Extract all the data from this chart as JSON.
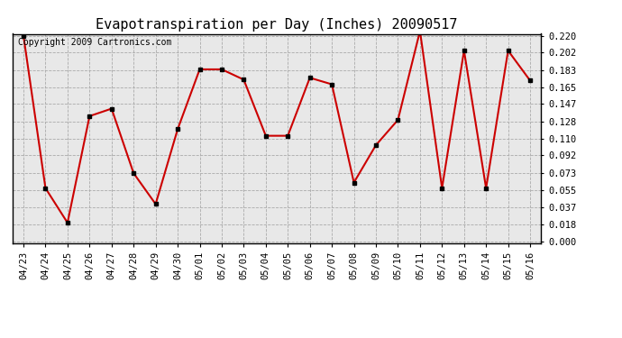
{
  "title": "Evapotranspiration per Day (Inches) 20090517",
  "copyright_text": "Copyright 2009 Cartronics.com",
  "dates": [
    "04/23",
    "04/24",
    "04/25",
    "04/26",
    "04/27",
    "04/28",
    "04/29",
    "04/30",
    "05/01",
    "05/02",
    "05/03",
    "05/04",
    "05/05",
    "05/06",
    "05/07",
    "05/08",
    "05/09",
    "05/10",
    "05/11",
    "05/12",
    "05/13",
    "05/14",
    "05/15",
    "05/16"
  ],
  "values": [
    0.22,
    0.057,
    0.02,
    0.134,
    0.142,
    0.073,
    0.04,
    0.12,
    0.184,
    0.184,
    0.173,
    0.113,
    0.113,
    0.175,
    0.168,
    0.063,
    0.103,
    0.13,
    0.225,
    0.057,
    0.204,
    0.057,
    0.204,
    0.172
  ],
  "line_color": "#cc0000",
  "marker_color": "#000000",
  "background_color": "#e8e8e8",
  "outer_background": "#ffffff",
  "grid_color": "#aaaaaa",
  "ylim": [
    0.0,
    0.22
  ],
  "yticks": [
    0.0,
    0.018,
    0.037,
    0.055,
    0.073,
    0.092,
    0.11,
    0.128,
    0.147,
    0.165,
    0.183,
    0.202,
    0.22
  ],
  "title_fontsize": 11,
  "copyright_fontsize": 7,
  "tick_fontsize": 7.5
}
